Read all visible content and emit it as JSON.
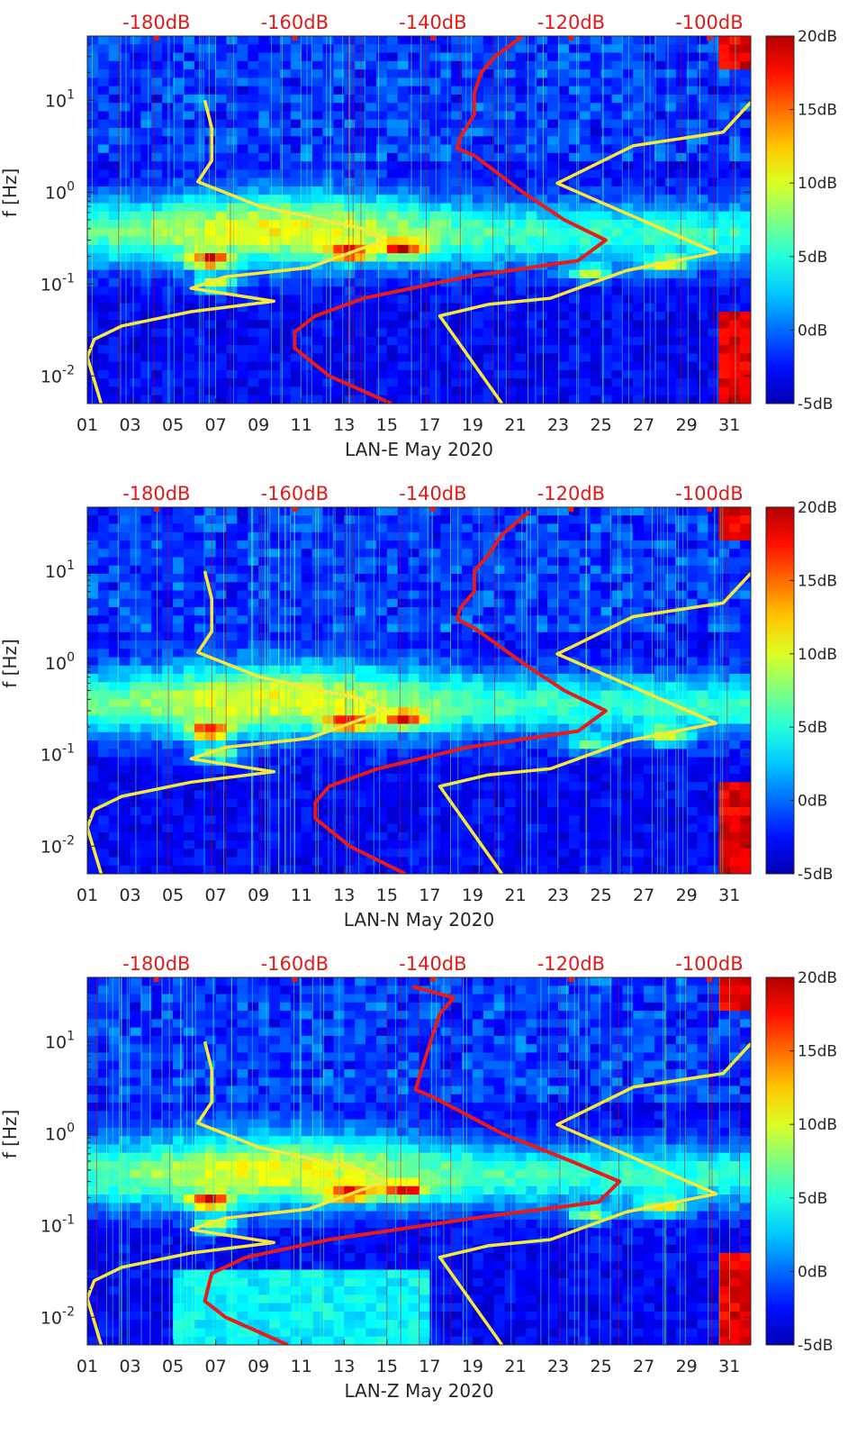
{
  "chart_data": [
    {
      "type": "heatmap",
      "xlabel": "LAN-E May 2020",
      "ylabel": "f [Hz]",
      "x_ticks": [
        "01",
        "03",
        "05",
        "07",
        "09",
        "11",
        "13",
        "15",
        "17",
        "19",
        "21",
        "23",
        "25",
        "27",
        "29",
        "31"
      ],
      "x_range_days": [
        1,
        32
      ],
      "y_scale": "log",
      "y_ticks": [
        "10^{-2}",
        "10^{-1}",
        "10^{0}",
        "10^{1}"
      ],
      "y_range_hz": [
        0.005,
        50
      ],
      "top_axis_labels": [
        "-180dB",
        "-160dB",
        "-140dB",
        "-120dB",
        "-100dB"
      ],
      "top_axis_range_db": [
        -190,
        -94
      ],
      "colorbar": {
        "labels": [
          "20dB",
          "15dB",
          "10dB",
          "5dB",
          "0dB",
          "-5dB"
        ],
        "range_db": [
          -5,
          20
        ],
        "colormap": "jet"
      },
      "hotspots": [
        {
          "day": 6.7,
          "freq": 0.18,
          "level": 1.0
        },
        {
          "day": 7.0,
          "freq": 0.1,
          "level": 0.7
        },
        {
          "day": 13.2,
          "freq": 0.22,
          "level": 0.85
        },
        {
          "day": 15.8,
          "freq": 0.24,
          "level": 0.85
        },
        {
          "day": 24.5,
          "freq": 0.13,
          "level": 0.6
        },
        {
          "day": 28.0,
          "freq": 0.16,
          "level": 0.7
        }
      ],
      "series": [
        {
          "color": "#e81b1b",
          "points": [
            [
              -127,
              50
            ],
            [
              -131,
              30
            ],
            [
              -133,
              20
            ],
            [
              -134,
              12
            ],
            [
              -134,
              7
            ],
            [
              -136,
              4
            ],
            [
              -136.5,
              3
            ],
            [
              -134,
              2.5
            ],
            [
              -127,
              1.0
            ],
            [
              -121,
              0.5
            ],
            [
              -115,
              0.3
            ],
            [
              -119,
              0.18
            ],
            [
              -135,
              0.12
            ],
            [
              -150,
              0.07
            ],
            [
              -157,
              0.045
            ],
            [
              -160,
              0.03
            ],
            [
              -160,
              0.02
            ],
            [
              -155,
              0.01
            ],
            [
              -146,
              0.005
            ]
          ]
        },
        {
          "color": "#f8e83a",
          "points": [
            [
              -173,
              10
            ],
            [
              -172,
              5
            ],
            [
              -172,
              2.2
            ],
            [
              -174,
              1.3
            ],
            [
              -165,
              0.7
            ],
            [
              -150,
              0.4
            ],
            [
              -147,
              0.3
            ],
            [
              -158,
              0.15
            ],
            [
              -170,
              0.12
            ],
            [
              -175,
              0.09
            ],
            [
              -163,
              0.065
            ],
            [
              -175,
              0.05
            ],
            [
              -185,
              0.035
            ],
            [
              -189,
              0.025
            ],
            [
              -190,
              0.016
            ],
            [
              -188,
              0.005
            ]
          ]
        },
        {
          "color": "#f8e83a",
          "points": [
            [
              -94,
              9.5
            ],
            [
              -98,
              4.5
            ],
            [
              -111,
              3.2
            ],
            [
              -122,
              1.25
            ],
            [
              -99,
              0.22
            ],
            [
              -112,
              0.14
            ],
            [
              -123,
              0.07
            ],
            [
              -132,
              0.06
            ],
            [
              -139,
              0.045
            ],
            [
              -130,
              0.005
            ]
          ]
        }
      ]
    },
    {
      "type": "heatmap",
      "xlabel": "LAN-N May 2020",
      "ylabel": "f [Hz]",
      "x_ticks": [
        "01",
        "03",
        "05",
        "07",
        "09",
        "11",
        "13",
        "15",
        "17",
        "19",
        "21",
        "23",
        "25",
        "27",
        "29",
        "31"
      ],
      "x_range_days": [
        1,
        32
      ],
      "y_scale": "log",
      "y_ticks": [
        "10^{-2}",
        "10^{-1}",
        "10^{0}",
        "10^{1}"
      ],
      "y_range_hz": [
        0.005,
        50
      ],
      "top_axis_labels": [
        "-180dB",
        "-160dB",
        "-140dB",
        "-120dB",
        "-100dB"
      ],
      "top_axis_range_db": [
        -190,
        -94
      ],
      "colorbar": {
        "labels": [
          "20dB",
          "15dB",
          "10dB",
          "5dB",
          "0dB",
          "-5dB"
        ],
        "range_db": [
          -5,
          20
        ],
        "colormap": "jet"
      },
      "hotspots": [
        {
          "day": 6.7,
          "freq": 0.18,
          "level": 1.0
        },
        {
          "day": 7.0,
          "freq": 0.1,
          "level": 0.7
        },
        {
          "day": 13.2,
          "freq": 0.22,
          "level": 0.85
        },
        {
          "day": 15.8,
          "freq": 0.24,
          "level": 0.85
        },
        {
          "day": 24.5,
          "freq": 0.13,
          "level": 0.6
        },
        {
          "day": 28.0,
          "freq": 0.16,
          "level": 0.7
        }
      ],
      "series": [
        {
          "color": "#e81b1b",
          "points": [
            [
              -126,
              45
            ],
            [
              -130,
              25
            ],
            [
              -132,
              15
            ],
            [
              -134,
              10
            ],
            [
              -134,
              6
            ],
            [
              -136,
              4
            ],
            [
              -136.5,
              3
            ],
            [
              -134,
              2.4
            ],
            [
              -127,
              1.0
            ],
            [
              -121,
              0.5
            ],
            [
              -115,
              0.3
            ],
            [
              -119,
              0.18
            ],
            [
              -135,
              0.12
            ],
            [
              -148,
              0.07
            ],
            [
              -155,
              0.045
            ],
            [
              -157,
              0.03
            ],
            [
              -157,
              0.02
            ],
            [
              -152,
              0.01
            ],
            [
              -144,
              0.005
            ]
          ]
        },
        {
          "color": "#f8e83a",
          "points": [
            [
              -173,
              10
            ],
            [
              -172,
              5
            ],
            [
              -172,
              2.2
            ],
            [
              -174,
              1.3
            ],
            [
              -165,
              0.7
            ],
            [
              -150,
              0.4
            ],
            [
              -147,
              0.3
            ],
            [
              -158,
              0.15
            ],
            [
              -170,
              0.12
            ],
            [
              -175,
              0.09
            ],
            [
              -163,
              0.065
            ],
            [
              -175,
              0.05
            ],
            [
              -185,
              0.035
            ],
            [
              -189,
              0.025
            ],
            [
              -190,
              0.016
            ],
            [
              -188,
              0.005
            ]
          ]
        },
        {
          "color": "#f8e83a",
          "points": [
            [
              -94,
              9.5
            ],
            [
              -98,
              4.5
            ],
            [
              -111,
              3.2
            ],
            [
              -122,
              1.25
            ],
            [
              -99,
              0.22
            ],
            [
              -112,
              0.14
            ],
            [
              -123,
              0.07
            ],
            [
              -132,
              0.06
            ],
            [
              -139,
              0.045
            ],
            [
              -130,
              0.005
            ]
          ]
        }
      ]
    },
    {
      "type": "heatmap",
      "xlabel": "LAN-Z May 2020",
      "ylabel": "f [Hz]",
      "x_ticks": [
        "01",
        "03",
        "05",
        "07",
        "09",
        "11",
        "13",
        "15",
        "17",
        "19",
        "21",
        "23",
        "25",
        "27",
        "29",
        "31"
      ],
      "x_range_days": [
        1,
        32
      ],
      "y_scale": "log",
      "y_ticks": [
        "10^{-2}",
        "10^{-1}",
        "10^{0}",
        "10^{1}"
      ],
      "y_range_hz": [
        0.005,
        50
      ],
      "top_axis_labels": [
        "-180dB",
        "-160dB",
        "-140dB",
        "-120dB",
        "-100dB"
      ],
      "top_axis_range_db": [
        -190,
        -94
      ],
      "colorbar": {
        "labels": [
          "20dB",
          "15dB",
          "10dB",
          "5dB",
          "0dB",
          "-5dB"
        ],
        "range_db": [
          -5,
          20
        ],
        "colormap": "jet"
      },
      "hotspots": [
        {
          "day": 6.7,
          "freq": 0.18,
          "level": 1.0
        },
        {
          "day": 7.0,
          "freq": 0.1,
          "level": 0.7
        },
        {
          "day": 13.2,
          "freq": 0.22,
          "level": 0.85
        },
        {
          "day": 15.8,
          "freq": 0.24,
          "level": 0.85
        },
        {
          "day": 24.5,
          "freq": 0.13,
          "level": 0.6
        },
        {
          "day": 28.0,
          "freq": 0.16,
          "level": 0.7
        }
      ],
      "series": [
        {
          "color": "#e81b1b",
          "points": [
            [
              -143,
              40
            ],
            [
              -137,
              30
            ],
            [
              -139,
              20
            ],
            [
              -140,
              12
            ],
            [
              -141,
              7
            ],
            [
              -142,
              4
            ],
            [
              -142.5,
              3
            ],
            [
              -140,
              2.5
            ],
            [
              -130,
              1.0
            ],
            [
              -120,
              0.5
            ],
            [
              -113,
              0.3
            ],
            [
              -116,
              0.18
            ],
            [
              -134,
              0.12
            ],
            [
              -155,
              0.07
            ],
            [
              -167,
              0.045
            ],
            [
              -172,
              0.03
            ],
            [
              -173,
              0.015
            ],
            [
              -170,
              0.01
            ],
            [
              -161,
              0.005
            ]
          ]
        },
        {
          "color": "#f8e83a",
          "points": [
            [
              -173,
              10
            ],
            [
              -172,
              5
            ],
            [
              -172,
              2.2
            ],
            [
              -174,
              1.3
            ],
            [
              -165,
              0.7
            ],
            [
              -150,
              0.4
            ],
            [
              -147,
              0.3
            ],
            [
              -158,
              0.15
            ],
            [
              -170,
              0.12
            ],
            [
              -175,
              0.09
            ],
            [
              -163,
              0.065
            ],
            [
              -175,
              0.05
            ],
            [
              -185,
              0.035
            ],
            [
              -189,
              0.025
            ],
            [
              -190,
              0.016
            ],
            [
              -188,
              0.005
            ]
          ]
        },
        {
          "color": "#f8e83a",
          "points": [
            [
              -94,
              9.5
            ],
            [
              -98,
              4.5
            ],
            [
              -111,
              3.2
            ],
            [
              -122,
              1.25
            ],
            [
              -99,
              0.22
            ],
            [
              -112,
              0.14
            ],
            [
              -123,
              0.07
            ],
            [
              -132,
              0.06
            ],
            [
              -139,
              0.045
            ],
            [
              -130,
              0.005
            ]
          ]
        }
      ]
    }
  ]
}
